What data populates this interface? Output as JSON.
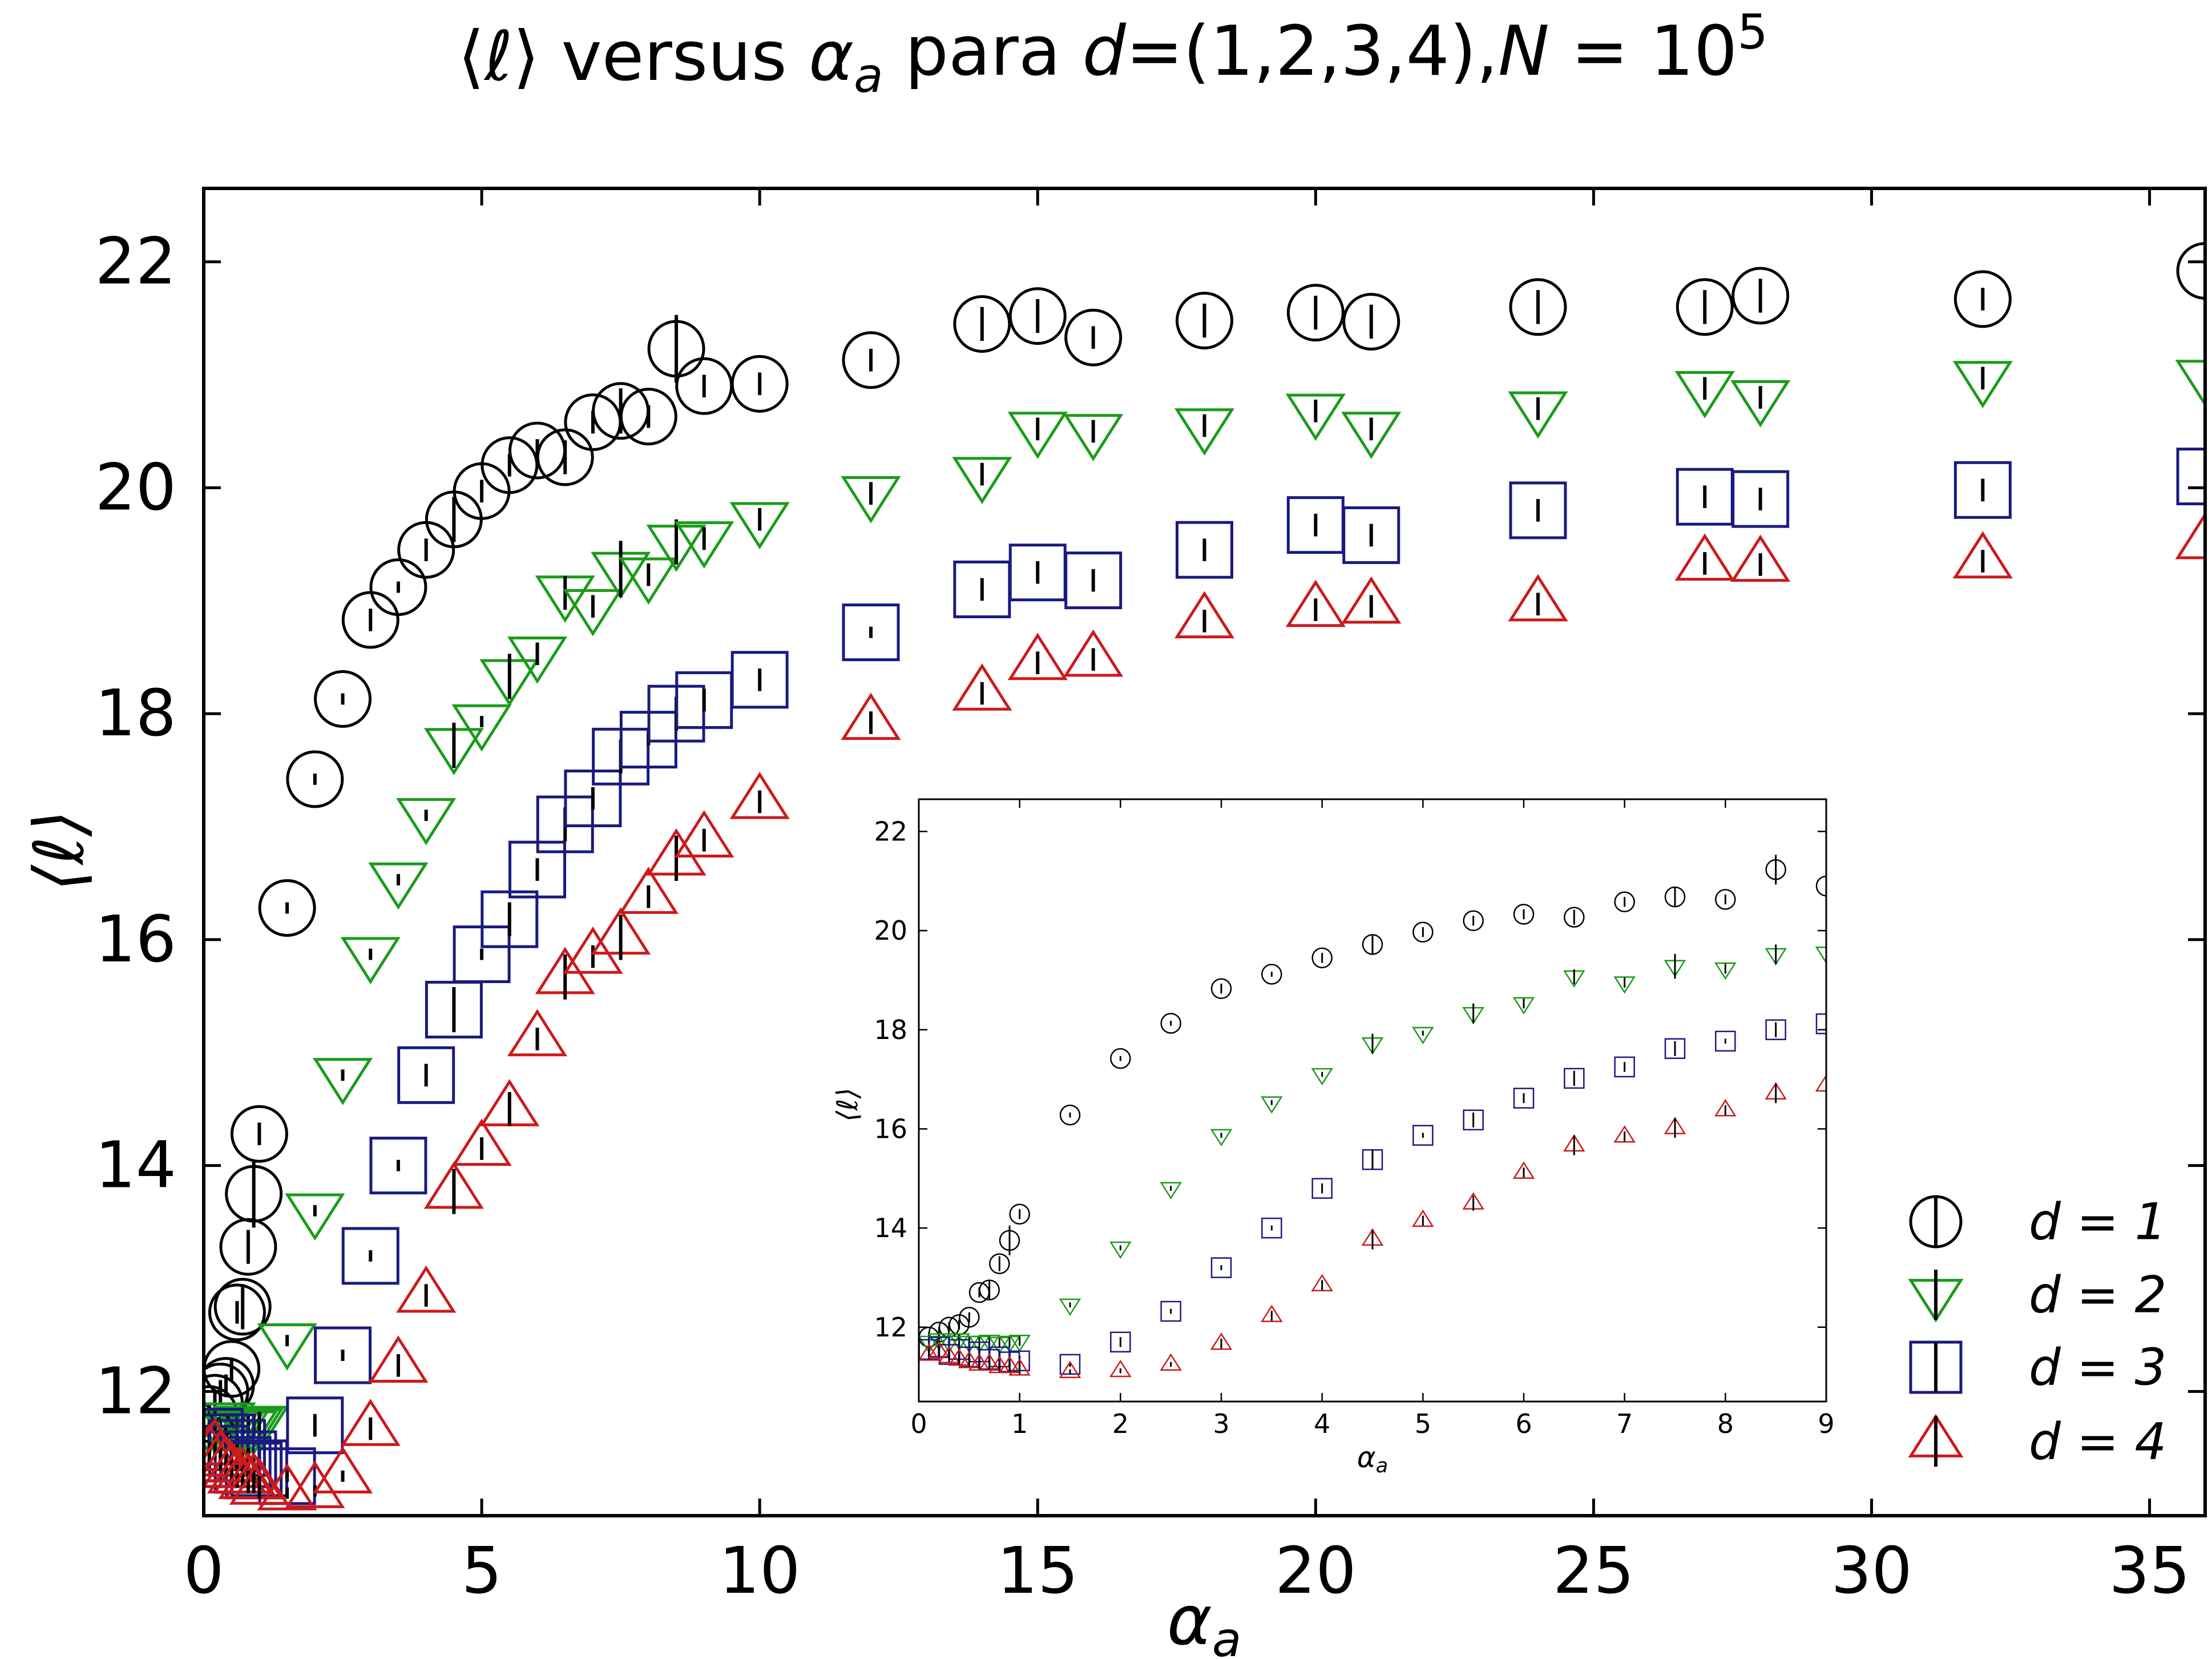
{
  "chart_data": {
    "type": "scatter",
    "title": "⟨ℓ⟩ versus α_a para d=(1,2,3,4),N = 10^5",
    "xlabel": "α_a",
    "ylabel": "⟨ℓ⟩",
    "xlim": [
      0,
      36
    ],
    "ylim": [
      10.9,
      22.65
    ],
    "x_ticks": [
      0,
      5,
      10,
      15,
      20,
      25,
      30,
      35
    ],
    "y_ticks": [
      12,
      14,
      16,
      18,
      20,
      22
    ],
    "grid": false,
    "legend_position": "bottom-right",
    "error_bars": "vertical",
    "series": [
      {
        "name": "d = 1",
        "marker": "circle",
        "color": "#000000",
        "points": [
          [
            0.1,
            11.8,
            0.1
          ],
          [
            0.2,
            11.9,
            0.1
          ],
          [
            0.3,
            12.0,
            0.1
          ],
          [
            0.4,
            12.05,
            0.1
          ],
          [
            0.5,
            12.2,
            0.1
          ],
          [
            0.6,
            12.7,
            0.1
          ],
          [
            0.7,
            12.75,
            0.2
          ],
          [
            0.8,
            13.28,
            0.15
          ],
          [
            0.9,
            13.75,
            0.3
          ],
          [
            1.0,
            14.28,
            0.1
          ],
          [
            1.5,
            16.28,
            0.05
          ],
          [
            2.0,
            17.42,
            0.05
          ],
          [
            2.5,
            18.13,
            0.05
          ],
          [
            3.0,
            18.83,
            0.1
          ],
          [
            3.5,
            19.12,
            0.05
          ],
          [
            4.0,
            19.45,
            0.1
          ],
          [
            4.5,
            19.72,
            0.2
          ],
          [
            5.0,
            19.97,
            0.1
          ],
          [
            5.5,
            20.2,
            0.1
          ],
          [
            6.0,
            20.33,
            0.1
          ],
          [
            6.5,
            20.27,
            0.15
          ],
          [
            7.0,
            20.58,
            0.1
          ],
          [
            7.5,
            20.68,
            0.2
          ],
          [
            8.0,
            20.63,
            0.1
          ],
          [
            8.5,
            21.23,
            0.3
          ],
          [
            9.0,
            20.9,
            0.1
          ],
          [
            10.0,
            20.92,
            0.1
          ],
          [
            12.0,
            21.13,
            0.1
          ],
          [
            14.0,
            21.45,
            0.15
          ],
          [
            15.0,
            21.52,
            0.15
          ],
          [
            16.0,
            21.33,
            0.1
          ],
          [
            18.0,
            21.48,
            0.15
          ],
          [
            20.0,
            21.55,
            0.15
          ],
          [
            21.0,
            21.47,
            0.15
          ],
          [
            24.0,
            21.6,
            0.15
          ],
          [
            27.0,
            21.6,
            0.15
          ],
          [
            28.0,
            21.7,
            0.15
          ],
          [
            32.0,
            21.67,
            0.1
          ],
          [
            36.0,
            21.92,
            0.2
          ]
        ]
      },
      {
        "name": "d = 2",
        "marker": "triangle-down",
        "color": "#1a9c1a",
        "points": [
          [
            0.1,
            11.7,
            0.1
          ],
          [
            0.2,
            11.75,
            0.1
          ],
          [
            0.3,
            11.7,
            0.1
          ],
          [
            0.4,
            11.75,
            0.1
          ],
          [
            0.5,
            11.7,
            0.1
          ],
          [
            0.6,
            11.7,
            0.1
          ],
          [
            0.7,
            11.72,
            0.1
          ],
          [
            0.8,
            11.68,
            0.1
          ],
          [
            0.9,
            11.7,
            0.1
          ],
          [
            1.0,
            11.72,
            0.1
          ],
          [
            1.5,
            12.45,
            0.05
          ],
          [
            2.0,
            13.6,
            0.05
          ],
          [
            2.5,
            14.8,
            0.05
          ],
          [
            3.0,
            15.87,
            0.05
          ],
          [
            3.5,
            16.53,
            0.05
          ],
          [
            4.0,
            17.1,
            0.05
          ],
          [
            4.5,
            17.72,
            0.2
          ],
          [
            5.0,
            17.93,
            0.05
          ],
          [
            5.5,
            18.33,
            0.2
          ],
          [
            6.0,
            18.53,
            0.1
          ],
          [
            6.5,
            19.07,
            0.15
          ],
          [
            7.0,
            18.95,
            0.1
          ],
          [
            7.5,
            19.28,
            0.25
          ],
          [
            8.0,
            19.23,
            0.1
          ],
          [
            8.5,
            19.52,
            0.2
          ],
          [
            9.0,
            19.55,
            0.1
          ],
          [
            10.0,
            19.72,
            0.1
          ],
          [
            12.0,
            19.95,
            0.1
          ],
          [
            14.0,
            20.12,
            0.1
          ],
          [
            15.0,
            20.52,
            0.1
          ],
          [
            16.0,
            20.5,
            0.1
          ],
          [
            18.0,
            20.55,
            0.1
          ],
          [
            20.0,
            20.68,
            0.1
          ],
          [
            21.0,
            20.52,
            0.1
          ],
          [
            24.0,
            20.7,
            0.1
          ],
          [
            27.0,
            20.88,
            0.1
          ],
          [
            28.0,
            20.8,
            0.1
          ],
          [
            32.0,
            20.97,
            0.1
          ],
          [
            36.0,
            20.98,
            0.15
          ]
        ]
      },
      {
        "name": "d = 3",
        "marker": "square",
        "color": "#1a1a80",
        "points": [
          [
            0.1,
            11.55,
            0.1
          ],
          [
            0.2,
            11.6,
            0.1
          ],
          [
            0.3,
            11.45,
            0.1
          ],
          [
            0.4,
            11.55,
            0.1
          ],
          [
            0.5,
            11.4,
            0.1
          ],
          [
            0.6,
            11.5,
            0.1
          ],
          [
            0.7,
            11.35,
            0.1
          ],
          [
            0.8,
            11.4,
            0.1
          ],
          [
            0.9,
            11.3,
            0.1
          ],
          [
            1.0,
            11.32,
            0.1
          ],
          [
            1.5,
            11.25,
            0.05
          ],
          [
            2.0,
            11.7,
            0.1
          ],
          [
            2.5,
            12.32,
            0.05
          ],
          [
            3.0,
            13.2,
            0.05
          ],
          [
            3.5,
            14.0,
            0.05
          ],
          [
            4.0,
            14.8,
            0.1
          ],
          [
            4.5,
            15.38,
            0.2
          ],
          [
            5.0,
            15.87,
            0.05
          ],
          [
            5.5,
            16.18,
            0.15
          ],
          [
            6.0,
            16.62,
            0.1
          ],
          [
            6.5,
            17.02,
            0.15
          ],
          [
            7.0,
            17.25,
            0.1
          ],
          [
            7.5,
            17.62,
            0.15
          ],
          [
            8.0,
            17.77,
            0.05
          ],
          [
            8.5,
            18.0,
            0.15
          ],
          [
            9.0,
            18.12,
            0.1
          ],
          [
            10.0,
            18.3,
            0.1
          ],
          [
            12.0,
            18.72,
            0.05
          ],
          [
            14.0,
            19.1,
            0.1
          ],
          [
            15.0,
            19.25,
            0.1
          ],
          [
            16.0,
            19.18,
            0.1
          ],
          [
            18.0,
            19.45,
            0.1
          ],
          [
            20.0,
            19.67,
            0.1
          ],
          [
            21.0,
            19.58,
            0.1
          ],
          [
            24.0,
            19.8,
            0.1
          ],
          [
            27.0,
            19.92,
            0.1
          ],
          [
            28.0,
            19.9,
            0.1
          ],
          [
            32.0,
            19.98,
            0.1
          ],
          [
            36.0,
            20.1,
            0.1
          ]
        ]
      },
      {
        "name": "d = 4",
        "marker": "triangle-up",
        "color": "#cc1a1a",
        "points": [
          [
            0.1,
            11.45,
            0.1
          ],
          [
            0.2,
            11.5,
            0.1
          ],
          [
            0.3,
            11.4,
            0.1
          ],
          [
            0.4,
            11.35,
            0.1
          ],
          [
            0.5,
            11.3,
            0.1
          ],
          [
            0.6,
            11.25,
            0.1
          ],
          [
            0.7,
            11.25,
            0.1
          ],
          [
            0.8,
            11.2,
            0.1
          ],
          [
            0.9,
            11.2,
            0.1
          ],
          [
            1.0,
            11.15,
            0.1
          ],
          [
            1.5,
            11.1,
            0.05
          ],
          [
            2.0,
            11.12,
            0.05
          ],
          [
            2.5,
            11.25,
            0.05
          ],
          [
            3.0,
            11.67,
            0.1
          ],
          [
            3.5,
            12.23,
            0.1
          ],
          [
            4.0,
            12.85,
            0.1
          ],
          [
            4.5,
            13.77,
            0.2
          ],
          [
            5.0,
            14.15,
            0.1
          ],
          [
            5.5,
            14.5,
            0.15
          ],
          [
            6.0,
            15.12,
            0.1
          ],
          [
            6.5,
            15.67,
            0.2
          ],
          [
            7.0,
            15.85,
            0.1
          ],
          [
            7.5,
            16.02,
            0.2
          ],
          [
            8.0,
            16.38,
            0.1
          ],
          [
            8.5,
            16.72,
            0.2
          ],
          [
            9.0,
            16.88,
            0.1
          ],
          [
            10.0,
            17.22,
            0.1
          ],
          [
            12.0,
            17.92,
            0.1
          ],
          [
            14.0,
            18.18,
            0.1
          ],
          [
            15.0,
            18.45,
            0.1
          ],
          [
            16.0,
            18.48,
            0.1
          ],
          [
            18.0,
            18.82,
            0.1
          ],
          [
            20.0,
            18.92,
            0.1
          ],
          [
            21.0,
            18.95,
            0.1
          ],
          [
            24.0,
            18.97,
            0.1
          ],
          [
            27.0,
            19.33,
            0.1
          ],
          [
            28.0,
            19.32,
            0.1
          ],
          [
            32.0,
            19.35,
            0.1
          ],
          [
            36.0,
            19.52,
            0.1
          ]
        ]
      }
    ],
    "inset": {
      "xlabel": "α_a",
      "ylabel": "⟨ℓ⟩",
      "xlim": [
        0,
        9
      ],
      "ylim": [
        10.5,
        22.65
      ],
      "x_ticks": [
        0,
        1,
        2,
        3,
        4,
        5,
        6,
        7,
        8,
        9
      ],
      "y_ticks": [
        12,
        14,
        16,
        18,
        20,
        22
      ]
    }
  }
}
